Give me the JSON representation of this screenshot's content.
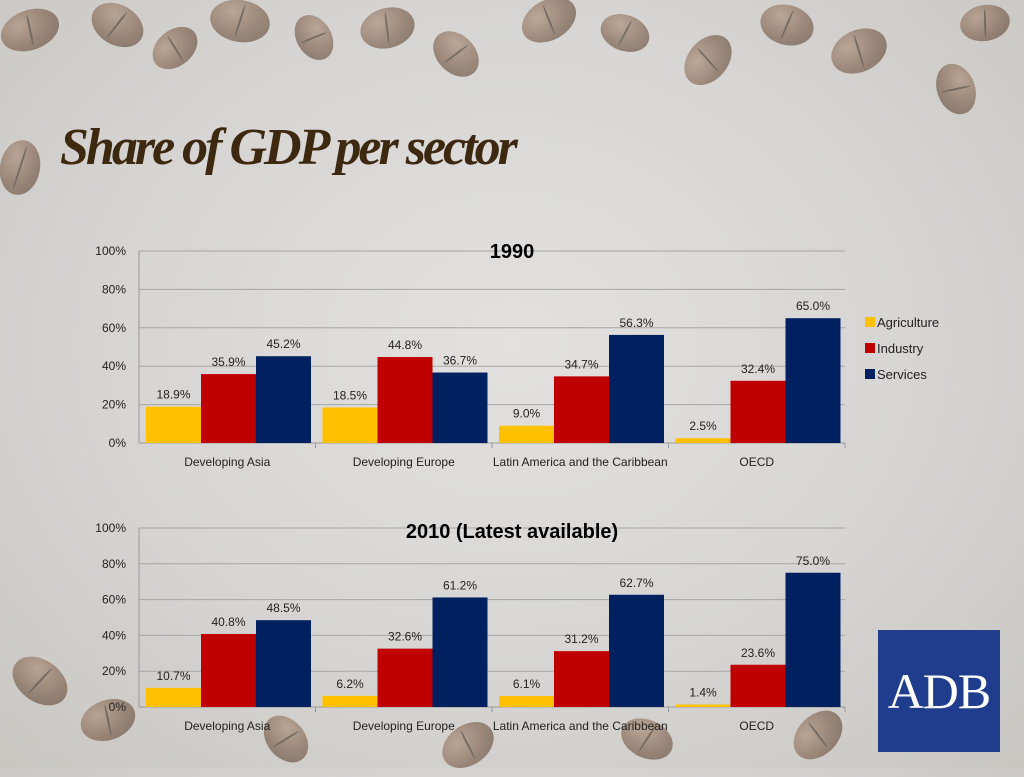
{
  "slide": {
    "title": "Share of GDP per sector",
    "logo_text": "ADB"
  },
  "colors": {
    "agriculture": "#FFC000",
    "industry": "#C00000",
    "services": "#002060"
  },
  "chart_data": [
    {
      "type": "bar",
      "title": "1990",
      "categories": [
        "Developing Asia",
        "Developing Europe",
        "Latin America and the Caribbean",
        "OECD"
      ],
      "series": [
        {
          "name": "Agriculture",
          "values": [
            18.9,
            18.5,
            9.0,
            2.5
          ],
          "labels": [
            "18.9%",
            "18.5%",
            "9.0%",
            "2.5%"
          ]
        },
        {
          "name": "Industry",
          "values": [
            35.9,
            44.8,
            34.7,
            32.4
          ],
          "labels": [
            "35.9%",
            "44.8%",
            "34.7%",
            "32.4%"
          ]
        },
        {
          "name": "Services",
          "values": [
            45.2,
            36.7,
            56.3,
            65.0
          ],
          "labels": [
            "45.2%",
            "36.7%",
            "56.3%",
            "65.0%"
          ]
        }
      ],
      "ylim": [
        0,
        100
      ],
      "yticks": [
        "0%",
        "20%",
        "40%",
        "60%",
        "80%",
        "100%"
      ],
      "legend": "right",
      "grid": true
    },
    {
      "type": "bar",
      "title": "2010 (Latest available)",
      "categories": [
        "Developing Asia",
        "Developing Europe",
        "Latin America and the Caribbean",
        "OECD"
      ],
      "series": [
        {
          "name": "Agriculture",
          "values": [
            10.7,
            6.2,
            6.1,
            1.4
          ],
          "labels": [
            "10.7%",
            "6.2%",
            "6.1%",
            "1.4%"
          ]
        },
        {
          "name": "Industry",
          "values": [
            40.8,
            32.6,
            31.2,
            23.6
          ],
          "labels": [
            "40.8%",
            "32.6%",
            "31.2%",
            "23.6%"
          ]
        },
        {
          "name": "Services",
          "values": [
            48.5,
            61.2,
            62.7,
            75.0
          ],
          "labels": [
            "48.5%",
            "61.2%",
            "62.7%",
            "75.0%"
          ]
        }
      ],
      "ylim": [
        0,
        100
      ],
      "yticks": [
        "0%",
        "20%",
        "40%",
        "60%",
        "80%",
        "100%"
      ],
      "legend": "none",
      "grid": true
    }
  ]
}
